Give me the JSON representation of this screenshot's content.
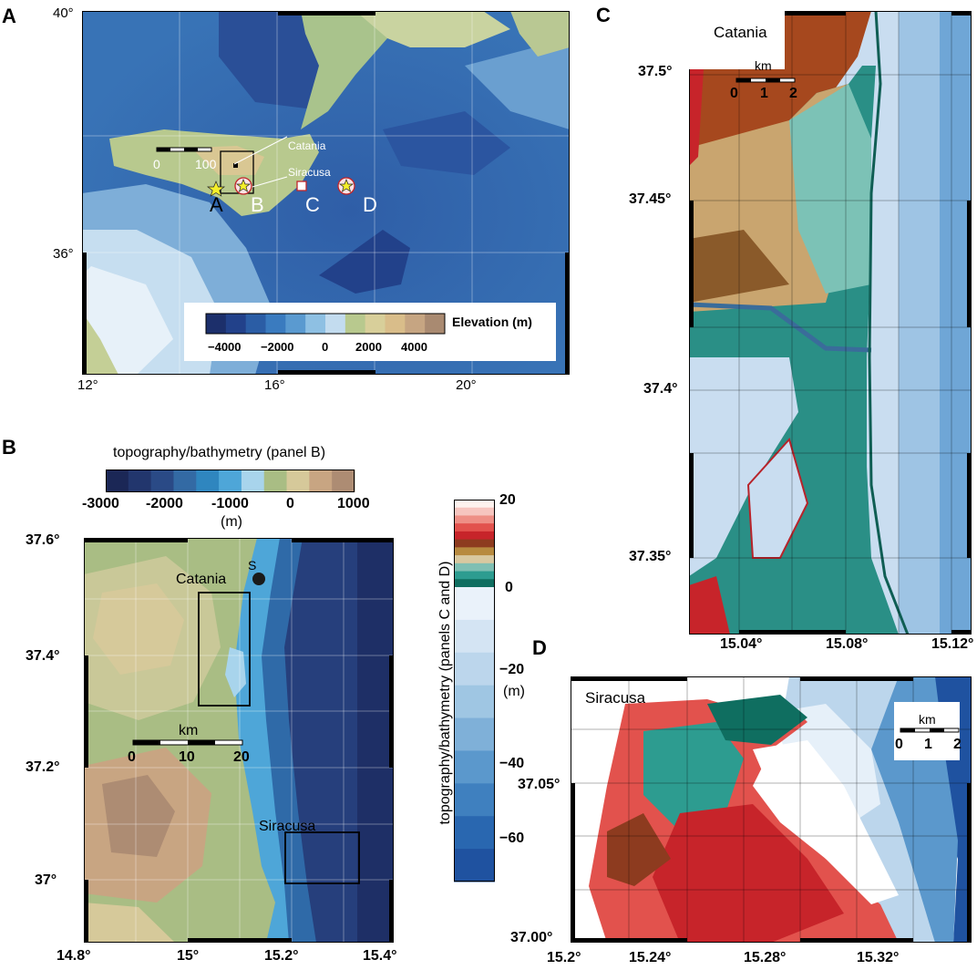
{
  "panels": {
    "A": {
      "letter": "A",
      "lat_ticks": [
        "40°",
        "36°"
      ],
      "lon_ticks": [
        "12°",
        "16°",
        "20°"
      ],
      "scale_bar": {
        "start": "0",
        "end": "100"
      },
      "site_labels": [
        "A",
        "B",
        "C",
        "D"
      ],
      "city_labels": {
        "catania": "Catania",
        "siracusa": "Siracusa"
      },
      "colorbar": {
        "title": "Elevation (m)",
        "ticks": [
          "−4000",
          "−2000",
          "0",
          "2000",
          "4000"
        ],
        "colors": [
          "#1c2f6b",
          "#22418a",
          "#2b5da5",
          "#3a7bbf",
          "#5a9ad0",
          "#8ec0e3",
          "#c3dcef",
          "#b8c98e",
          "#d8cf9a",
          "#d9bd8a",
          "#c6a582",
          "#a98a71"
        ]
      }
    },
    "B": {
      "letter": "B",
      "colorbar": {
        "title": "topography/bathymetry (panel B)",
        "ticks": [
          "-3000",
          "-2000",
          "-1000",
          "0",
          "1000"
        ],
        "unit": "(m)",
        "colors": [
          "#1b2756",
          "#22366d",
          "#2a4a86",
          "#336aa4",
          "#2f86bf",
          "#4ea6d8",
          "#a8d4ec",
          "#a9bd84",
          "#d6c99a",
          "#c8a582",
          "#ad8c73"
        ]
      },
      "lat_ticks": [
        "37.6°",
        "37.4°",
        "37.2°",
        "37°"
      ],
      "lon_ticks": [
        "14.8°",
        "15°",
        "15.2°",
        "15.4°"
      ],
      "city_labels": {
        "catania": "Catania",
        "siracusa": "Siracusa"
      },
      "station_label": "S",
      "scale_bar": {
        "title": "km",
        "ticks": [
          "0",
          "10",
          "20"
        ]
      }
    },
    "CD_colorbar": {
      "title": "topography/bathymetry (panels C and D)",
      "unit": "(m)",
      "ticks": [
        "20",
        "0",
        "−20",
        "−40",
        "−60"
      ],
      "colors_top": [
        "#fdf2ee",
        "#f6c5bf",
        "#ee8f86",
        "#e2524d",
        "#c7242a",
        "#8d3b1f",
        "#b78a3f",
        "#d8c8a0",
        "#7fbfb3",
        "#2d9c90",
        "#0f6e60"
      ],
      "colors_bottom": [
        "#eaf2fa",
        "#d4e4f3",
        "#bcd6ec",
        "#9fc6e3",
        "#7fb0d8",
        "#5b98cc",
        "#3f80bf",
        "#2967b0",
        "#1f52a0"
      ]
    },
    "C": {
      "letter": "C",
      "title": "Catania",
      "lat_ticks": [
        "37.5°",
        "37.45°",
        "37.4°",
        "37.35°"
      ],
      "lon_ticks": [
        "15.04°",
        "15.08°",
        "15.12°"
      ],
      "scale_bar": {
        "title": "km",
        "ticks": [
          "0",
          "1",
          "2"
        ]
      }
    },
    "D": {
      "letter": "D",
      "title": "Siracusa",
      "lat_ticks": [
        "37.05°",
        "37.00°"
      ],
      "lon_ticks": [
        "15.2°",
        "15.24°",
        "15.28°",
        "15.32°"
      ],
      "scale_bar": {
        "title": "km",
        "ticks": [
          "0",
          "1",
          "2"
        ]
      }
    }
  }
}
